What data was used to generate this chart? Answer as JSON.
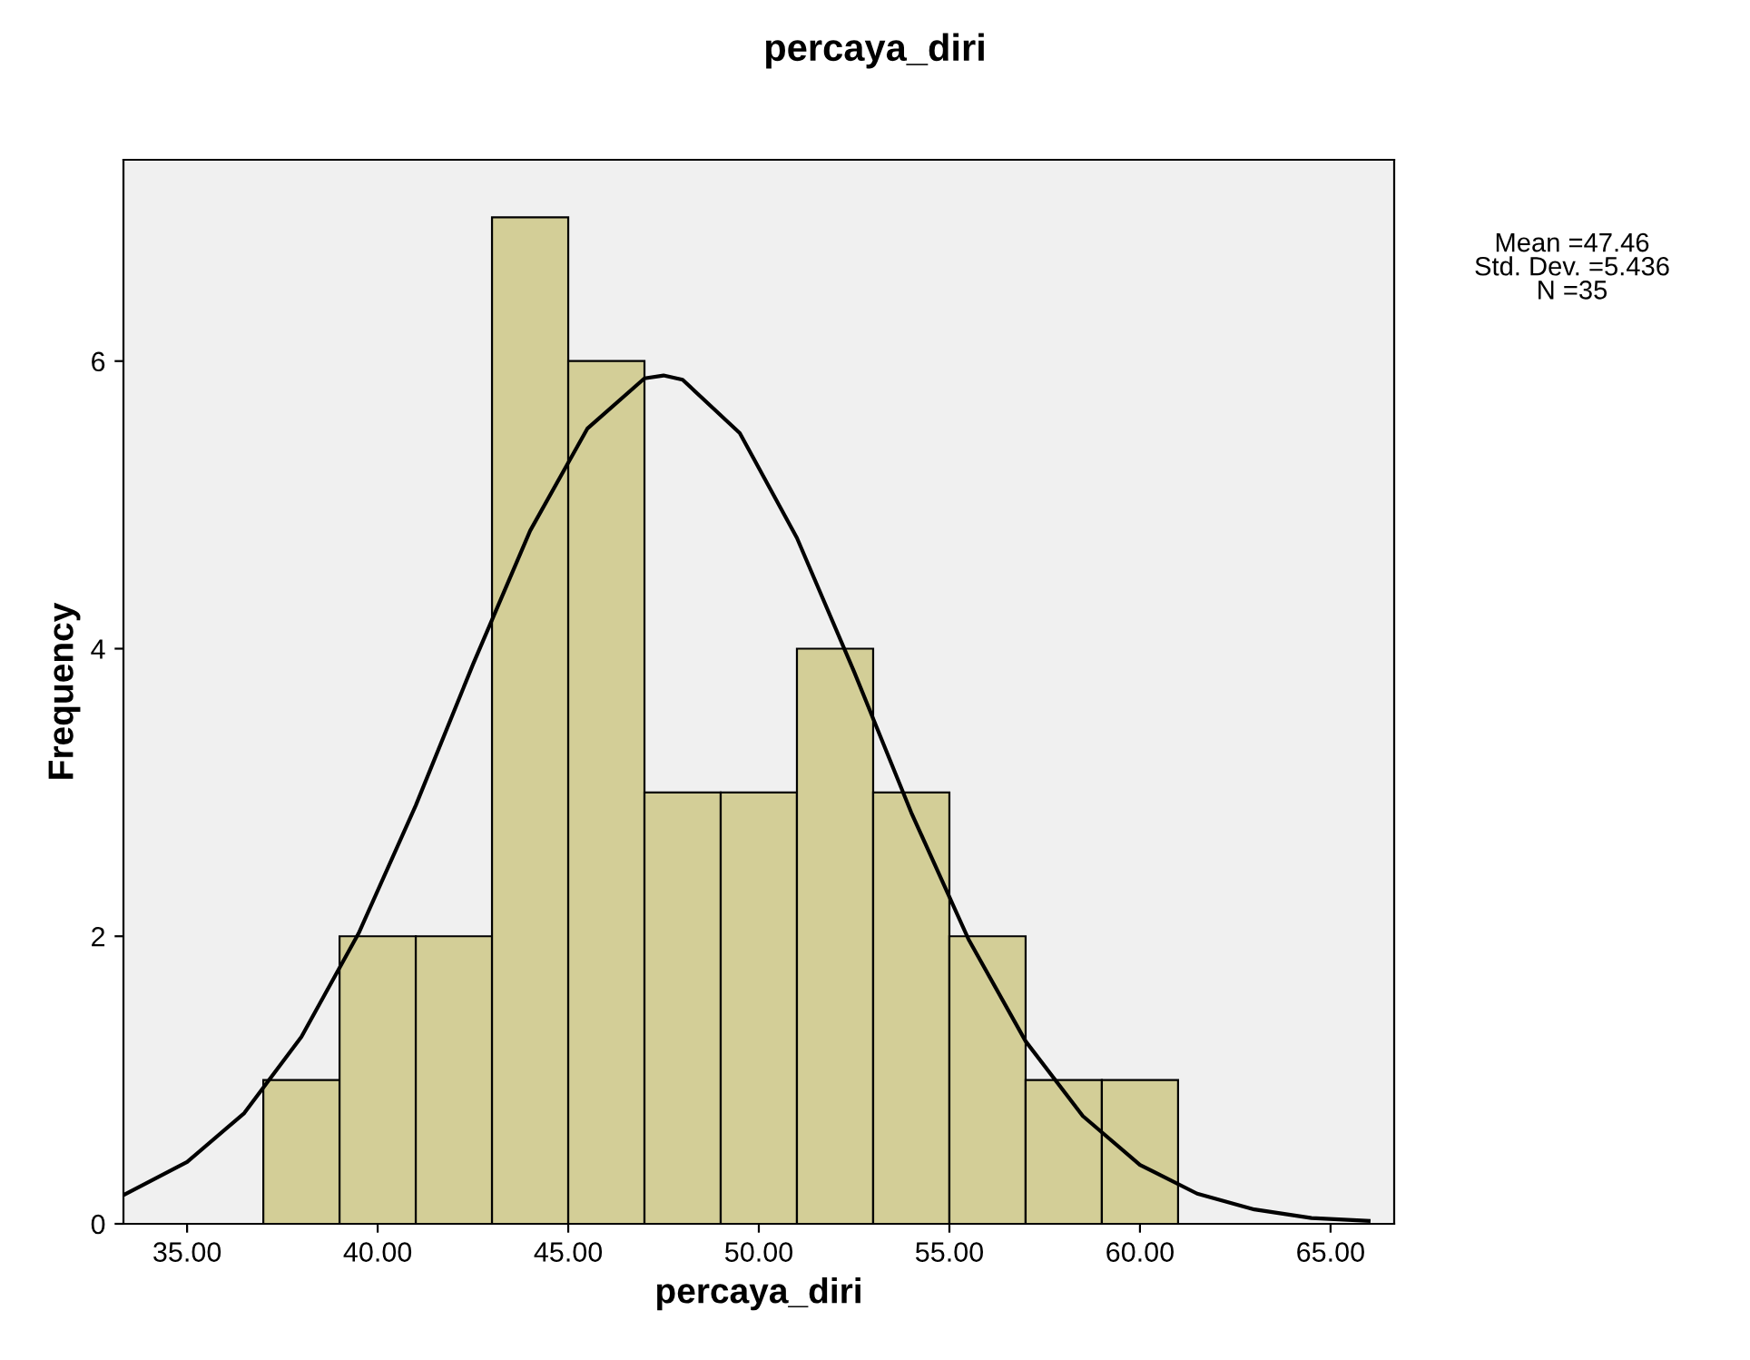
{
  "chart_data": {
    "type": "histogram",
    "title": "percaya_diri",
    "xlabel": "percaya_diri",
    "ylabel": "Frequency",
    "series": [
      {
        "bins": [
          37,
          39,
          41,
          43,
          45,
          47,
          49,
          51,
          53,
          55,
          57,
          59,
          61
        ],
        "values": [
          1,
          2,
          2,
          7,
          6,
          3,
          3,
          4,
          3,
          2,
          1,
          1
        ],
        "color": "#d3ce97"
      },
      {
        "type": "line",
        "color": "#000000",
        "x": [
          33.33,
          35,
          36.5,
          38,
          39.5,
          41,
          42.5,
          44,
          45.5,
          47,
          47.5,
          48,
          49.5,
          51,
          52.5,
          54,
          55.5,
          57,
          58.5,
          60,
          61.5,
          63,
          64.5,
          66
        ],
        "values": [
          0.2,
          0.43,
          0.77,
          1.3,
          2.02,
          2.91,
          3.89,
          4.82,
          5.53,
          5.88,
          5.9,
          5.87,
          5.5,
          4.77,
          3.84,
          2.86,
          1.98,
          1.27,
          0.75,
          0.41,
          0.21,
          0.1,
          0.04,
          0.02
        ]
      }
    ],
    "xlim": [
      33.33,
      66.67
    ],
    "xticks": [
      {
        "value": 35,
        "label": "35.00"
      },
      {
        "value": 40,
        "label": "40.00"
      },
      {
        "value": 45,
        "label": "45.00"
      },
      {
        "value": 50,
        "label": "50.00"
      },
      {
        "value": 55,
        "label": "55.00"
      },
      {
        "value": 60,
        "label": "60.00"
      },
      {
        "value": 65,
        "label": "65.00"
      }
    ],
    "ylim": [
      0,
      7.4
    ],
    "yticks": [
      0,
      2,
      4,
      6
    ],
    "grid": false,
    "marker": "none",
    "line_style": "solid",
    "annotations": [
      "Mean =47.46",
      "Std. Dev. =5.436",
      "N =35"
    ]
  }
}
